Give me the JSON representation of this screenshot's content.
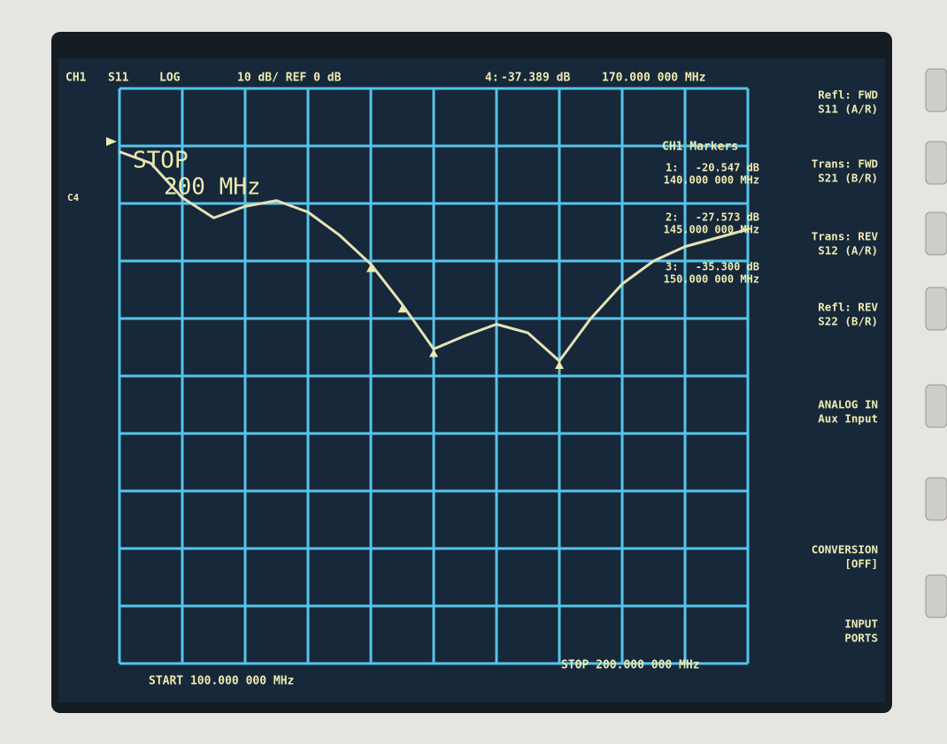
{
  "header": {
    "channel": "CH1",
    "parameter": "S11",
    "format": "LOG",
    "scale": "10 dB/ REF 0 dB"
  },
  "overlay": {
    "line1": "STOP",
    "line2": "200 MHz",
    "side": "C4"
  },
  "marker_panel_title": "CH1 Markers",
  "footer": {
    "start": "START 100.000 000 MHz",
    "stop": "STOP 200.000 000 MHz"
  },
  "softkeys": [
    [
      "Refl: FWD",
      "S11 (A/R)"
    ],
    [
      "Trans: FWD",
      "S21 (B/R)"
    ],
    [
      "Trans: REV",
      "S12 (A/R)"
    ],
    [
      "Refl: REV",
      "S22 (B/R)"
    ],
    [
      "ANALOG IN",
      "Aux Input"
    ],
    [
      "CONVERSION",
      "[OFF]"
    ],
    [
      "INPUT",
      "PORTS"
    ]
  ],
  "chart_data": {
    "type": "line",
    "color": "#e6e2b4",
    "x": [
      100,
      105,
      110,
      115,
      120,
      125,
      130,
      135,
      140,
      145,
      150,
      155,
      160,
      165,
      170,
      175,
      180,
      185,
      190,
      195,
      200
    ],
    "values": [
      -1,
      -3,
      -9,
      -12.5,
      -10.5,
      -9.5,
      -11.5,
      -15.5,
      -20.547,
      -27.573,
      -35.3,
      -33,
      -31,
      -32.5,
      -37.389,
      -30,
      -24,
      -20,
      -17.5,
      -16,
      -14.5
    ],
    "xlim": [
      100,
      200
    ],
    "ylim": [
      -90,
      10
    ],
    "markers": [
      {
        "id": "1:",
        "value": -20.547,
        "value_label": "-20.547 dB",
        "x": 140,
        "x_label": "140.000 000 MHz"
      },
      {
        "id": "2:",
        "value": -27.573,
        "value_label": "-27.573 dB",
        "x": 145,
        "x_label": "145.000 000 MHz"
      },
      {
        "id": "3:",
        "value": -35.3,
        "value_label": "-35.300 dB",
        "x": 150,
        "x_label": "150.000 000 MHz"
      },
      {
        "id": "4:",
        "value": -37.389,
        "value_label": "-37.389 dB",
        "x": 170,
        "x_label": "170.000 000 MHz"
      }
    ]
  }
}
